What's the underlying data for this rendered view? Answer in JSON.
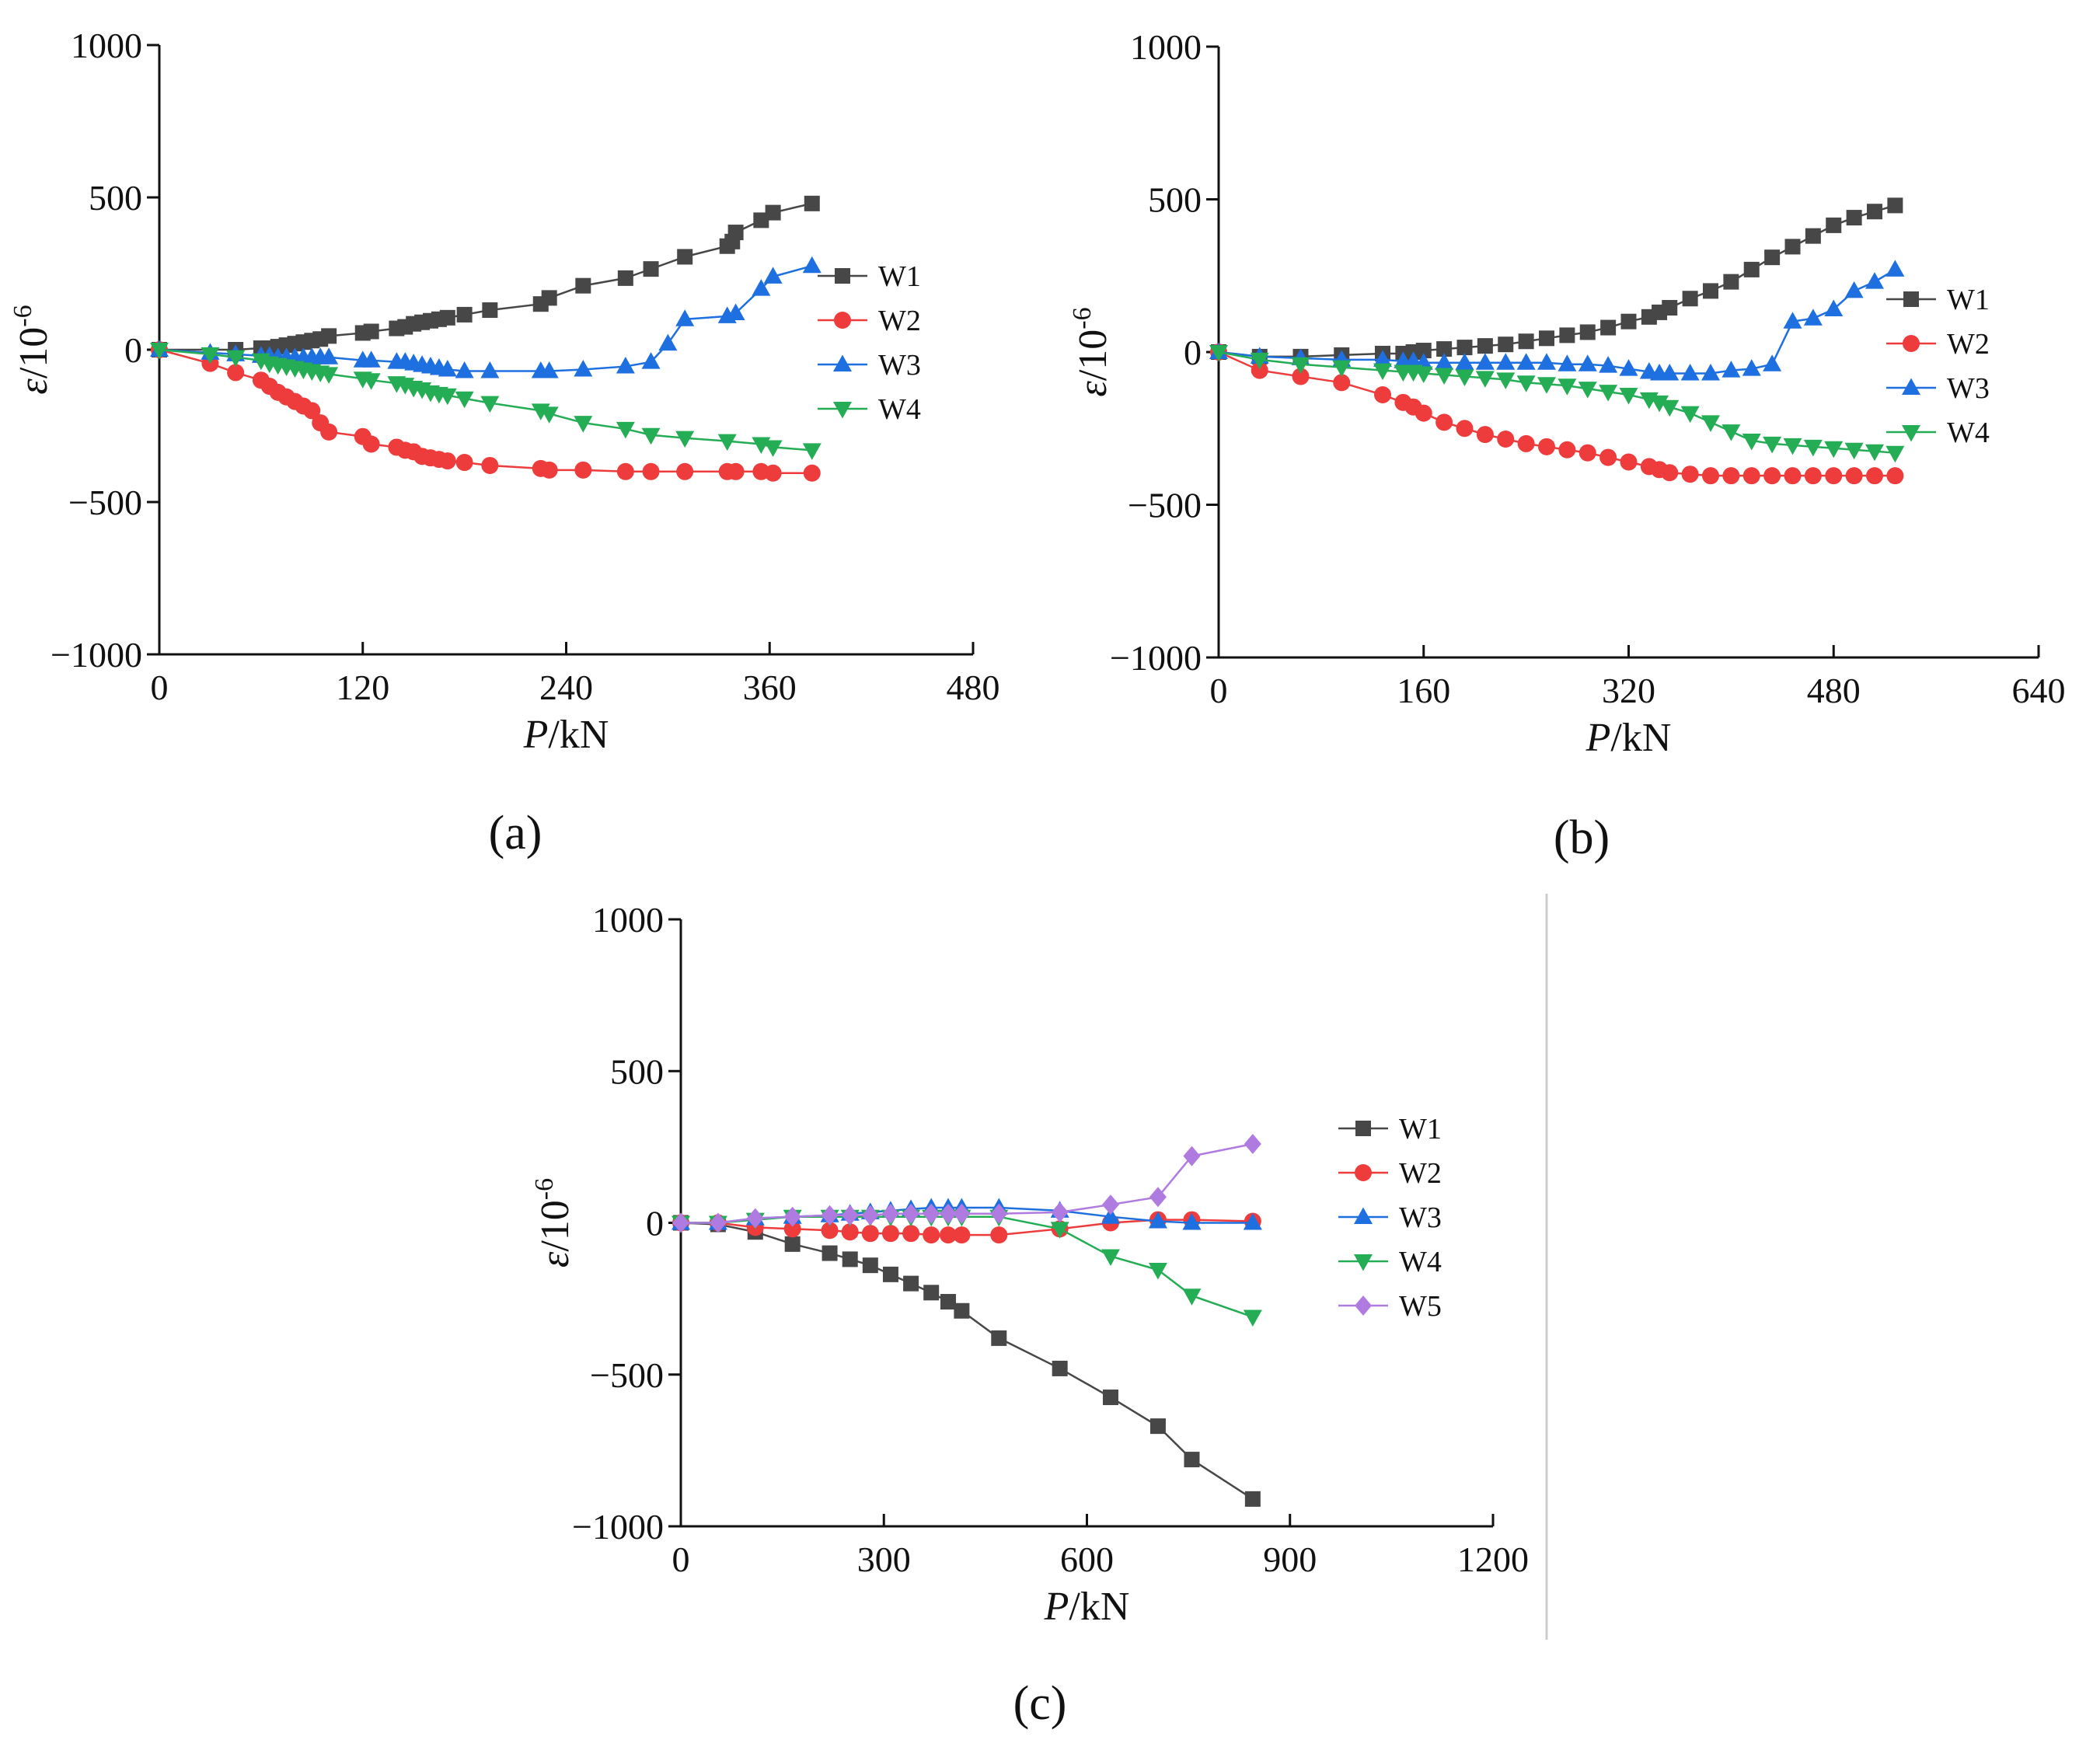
{
  "colors": {
    "W1": "#474747",
    "W2": "#ee3b3b",
    "W3": "#1e6fe0",
    "W4": "#25ad55",
    "W5": "#b07be0",
    "axis": "#111111",
    "divider": "#cccccc"
  },
  "chart_data": [
    {
      "id": "a",
      "type": "line",
      "caption": "(a)",
      "xlabel": {
        "italic": "P",
        "unit": "/kN"
      },
      "ylabel": {
        "italic": "ε",
        "unit": "/10",
        "exp": "-6"
      },
      "xlim": [
        0,
        480
      ],
      "ylim": [
        -1000,
        1000
      ],
      "xticks": [
        0,
        120,
        240,
        360,
        480
      ],
      "yticks": [
        1000,
        500,
        0,
        -500,
        -1000
      ],
      "xtick_labels": [
        "0",
        "120",
        "240",
        "360",
        "480"
      ],
      "ytick_labels": [
        "1000",
        "500",
        "0",
        "−500",
        "−1000"
      ],
      "legend_position": "right",
      "series": [
        {
          "name": "W1",
          "marker": "square",
          "x": [
            0,
            45,
            60,
            65,
            70,
            75,
            80,
            85,
            90,
            95,
            100,
            120,
            125,
            140,
            145,
            150,
            155,
            160,
            165,
            170,
            180,
            195,
            225,
            230,
            250,
            275,
            290,
            310,
            335,
            338,
            340,
            355,
            362,
            385
          ],
          "y": [
            0,
            0,
            5,
            5,
            10,
            15,
            20,
            25,
            30,
            35,
            45,
            55,
            60,
            70,
            75,
            85,
            90,
            95,
            100,
            105,
            115,
            130,
            150,
            170,
            210,
            235,
            265,
            305,
            340,
            355,
            385,
            425,
            450,
            480
          ]
        },
        {
          "name": "W2",
          "marker": "circle",
          "x": [
            0,
            30,
            45,
            60,
            65,
            70,
            75,
            80,
            85,
            90,
            95,
            100,
            120,
            125,
            140,
            145,
            150,
            155,
            160,
            165,
            170,
            180,
            195,
            225,
            230,
            250,
            275,
            290,
            310,
            335,
            340,
            355,
            362,
            385
          ],
          "y": [
            0,
            -45,
            -75,
            -100,
            -120,
            -140,
            -155,
            -170,
            -185,
            -200,
            -240,
            -270,
            -285,
            -310,
            -320,
            -330,
            -335,
            -350,
            -355,
            -360,
            -365,
            -370,
            -380,
            -390,
            -395,
            -395,
            -400,
            -400,
            -400,
            -400,
            -400,
            -400,
            -405,
            -405
          ]
        },
        {
          "name": "W3",
          "marker": "triangle-up",
          "x": [
            0,
            30,
            45,
            60,
            65,
            70,
            75,
            80,
            85,
            90,
            95,
            100,
            120,
            125,
            140,
            145,
            150,
            155,
            160,
            165,
            170,
            180,
            195,
            225,
            230,
            250,
            275,
            290,
            300,
            310,
            335,
            340,
            355,
            362,
            385
          ],
          "y": [
            0,
            -10,
            -15,
            -20,
            -20,
            -25,
            -25,
            -25,
            -25,
            -25,
            -25,
            -25,
            -35,
            -35,
            -40,
            -40,
            -45,
            -50,
            -55,
            -60,
            -65,
            -70,
            -70,
            -70,
            -70,
            -65,
            -55,
            -40,
            20,
            100,
            110,
            120,
            200,
            240,
            275
          ]
        },
        {
          "name": "W4",
          "marker": "triangle-down",
          "x": [
            0,
            30,
            45,
            60,
            65,
            70,
            75,
            80,
            85,
            90,
            95,
            100,
            120,
            125,
            140,
            145,
            150,
            155,
            160,
            165,
            170,
            180,
            195,
            225,
            230,
            250,
            275,
            290,
            310,
            335,
            355,
            362,
            385
          ],
          "y": [
            0,
            -15,
            -25,
            -35,
            -45,
            -50,
            -55,
            -60,
            -65,
            -70,
            -75,
            -80,
            -95,
            -100,
            -110,
            -115,
            -125,
            -130,
            -140,
            -145,
            -150,
            -160,
            -175,
            -200,
            -210,
            -240,
            -260,
            -280,
            -290,
            -300,
            -310,
            -320,
            -330
          ]
        }
      ]
    },
    {
      "id": "b",
      "type": "line",
      "caption": "(b)",
      "xlabel": {
        "italic": "P",
        "unit": "/kN"
      },
      "ylabel": {
        "italic": "ε",
        "unit": "/10",
        "exp": "-6"
      },
      "xlim": [
        0,
        640
      ],
      "ylim": [
        -1000,
        1000
      ],
      "xticks": [
        0,
        160,
        320,
        480,
        640
      ],
      "yticks": [
        1000,
        500,
        0,
        -500,
        -1000
      ],
      "xtick_labels": [
        "0",
        "160",
        "320",
        "480",
        "640"
      ],
      "ytick_labels": [
        "1000",
        "500",
        "0",
        "−500",
        "−1000"
      ],
      "legend_position": "right",
      "series": [
        {
          "name": "W1",
          "marker": "square",
          "x": [
            0,
            32,
            64,
            96,
            128,
            144,
            152,
            160,
            176,
            192,
            208,
            224,
            240,
            256,
            272,
            288,
            304,
            320,
            336,
            344,
            352,
            368,
            384,
            400,
            416,
            432,
            448,
            464,
            480,
            496,
            512,
            528
          ],
          "y": [
            0,
            -15,
            -15,
            -10,
            -5,
            -5,
            0,
            5,
            10,
            15,
            20,
            25,
            35,
            45,
            55,
            65,
            80,
            100,
            115,
            130,
            145,
            175,
            200,
            230,
            270,
            310,
            345,
            380,
            415,
            440,
            460,
            480
          ]
        },
        {
          "name": "W2",
          "marker": "circle",
          "x": [
            0,
            32,
            64,
            96,
            128,
            144,
            152,
            160,
            176,
            192,
            208,
            224,
            240,
            256,
            272,
            288,
            304,
            320,
            336,
            344,
            352,
            368,
            384,
            400,
            416,
            432,
            448,
            464,
            480,
            496,
            512,
            528
          ],
          "y": [
            0,
            -60,
            -80,
            -100,
            -140,
            -165,
            -180,
            -200,
            -230,
            -250,
            -270,
            -285,
            -300,
            -310,
            -320,
            -330,
            -345,
            -360,
            -375,
            -385,
            -395,
            -400,
            -405,
            -405,
            -405,
            -405,
            -405,
            -405,
            -405,
            -405,
            -405,
            -405
          ]
        },
        {
          "name": "W3",
          "marker": "triangle-up",
          "x": [
            0,
            32,
            64,
            96,
            128,
            144,
            152,
            160,
            176,
            192,
            208,
            224,
            240,
            256,
            272,
            288,
            304,
            320,
            336,
            344,
            352,
            368,
            384,
            400,
            416,
            432,
            448,
            464,
            480,
            496,
            512,
            528
          ],
          "y": [
            0,
            -15,
            -20,
            -25,
            -25,
            -30,
            -30,
            -35,
            -35,
            -35,
            -35,
            -35,
            -35,
            -35,
            -40,
            -40,
            -45,
            -55,
            -65,
            -70,
            -70,
            -70,
            -70,
            -60,
            -55,
            -40,
            100,
            110,
            140,
            200,
            230,
            270
          ]
        },
        {
          "name": "W4",
          "marker": "triangle-down",
          "x": [
            0,
            32,
            64,
            96,
            128,
            144,
            152,
            160,
            176,
            192,
            208,
            224,
            240,
            256,
            272,
            288,
            304,
            320,
            336,
            344,
            352,
            368,
            384,
            400,
            416,
            432,
            448,
            464,
            480,
            496,
            512,
            528
          ],
          "y": [
            0,
            -25,
            -40,
            -50,
            -60,
            -65,
            -65,
            -70,
            -75,
            -80,
            -85,
            -90,
            -100,
            -105,
            -110,
            -120,
            -130,
            -140,
            -155,
            -165,
            -180,
            -200,
            -230,
            -260,
            -290,
            -300,
            -305,
            -310,
            -315,
            -320,
            -325,
            -330
          ]
        }
      ]
    },
    {
      "id": "c",
      "type": "line",
      "caption": "(c)",
      "xlabel": {
        "italic": "P",
        "unit": "/kN"
      },
      "ylabel": {
        "italic": "ε",
        "unit": "/10",
        "exp": "-6"
      },
      "xlim": [
        0,
        1200
      ],
      "ylim": [
        -1000,
        1000
      ],
      "xticks": [
        0,
        300,
        600,
        900,
        1200
      ],
      "yticks": [
        1000,
        500,
        0,
        -500,
        -1000
      ],
      "xtick_labels": [
        "0",
        "300",
        "600",
        "900",
        "1200"
      ],
      "ytick_labels": [
        "1000",
        "500",
        "0",
        "−500",
        "−1000"
      ],
      "legend_position": "right",
      "series": [
        {
          "name": "W1",
          "marker": "square",
          "x": [
            0,
            55,
            110,
            165,
            220,
            250,
            280,
            310,
            340,
            370,
            395,
            415,
            470,
            560,
            635,
            705,
            755,
            845
          ],
          "y": [
            0,
            -5,
            -30,
            -70,
            -100,
            -120,
            -140,
            -170,
            -200,
            -230,
            -260,
            -290,
            -380,
            -480,
            -575,
            -670,
            -780,
            -910
          ]
        },
        {
          "name": "W2",
          "marker": "circle",
          "x": [
            0,
            55,
            110,
            165,
            220,
            250,
            280,
            310,
            340,
            370,
            395,
            415,
            470,
            560,
            635,
            705,
            755,
            845
          ],
          "y": [
            0,
            0,
            -15,
            -20,
            -25,
            -30,
            -35,
            -35,
            -35,
            -40,
            -40,
            -40,
            -40,
            -20,
            0,
            10,
            10,
            5
          ]
        },
        {
          "name": "W3",
          "marker": "triangle-up",
          "x": [
            0,
            55,
            110,
            165,
            220,
            250,
            280,
            310,
            340,
            370,
            395,
            415,
            470,
            560,
            635,
            705,
            755,
            845
          ],
          "y": [
            0,
            0,
            15,
            20,
            25,
            30,
            35,
            40,
            45,
            50,
            50,
            50,
            50,
            40,
            20,
            5,
            0,
            0
          ]
        },
        {
          "name": "W4",
          "marker": "triangle-down",
          "x": [
            0,
            55,
            110,
            165,
            220,
            250,
            280,
            310,
            340,
            370,
            395,
            415,
            470,
            560,
            635,
            705,
            755,
            845
          ],
          "y": [
            0,
            0,
            10,
            20,
            20,
            20,
            20,
            20,
            20,
            20,
            20,
            20,
            20,
            -20,
            -110,
            -155,
            -240,
            -310
          ]
        },
        {
          "name": "W5",
          "marker": "diamond",
          "x": [
            0,
            55,
            110,
            165,
            220,
            250,
            280,
            310,
            340,
            370,
            395,
            415,
            470,
            560,
            635,
            705,
            755,
            845
          ],
          "y": [
            0,
            0,
            15,
            20,
            25,
            25,
            25,
            30,
            30,
            30,
            30,
            30,
            30,
            35,
            60,
            85,
            220,
            260
          ]
        }
      ]
    }
  ]
}
